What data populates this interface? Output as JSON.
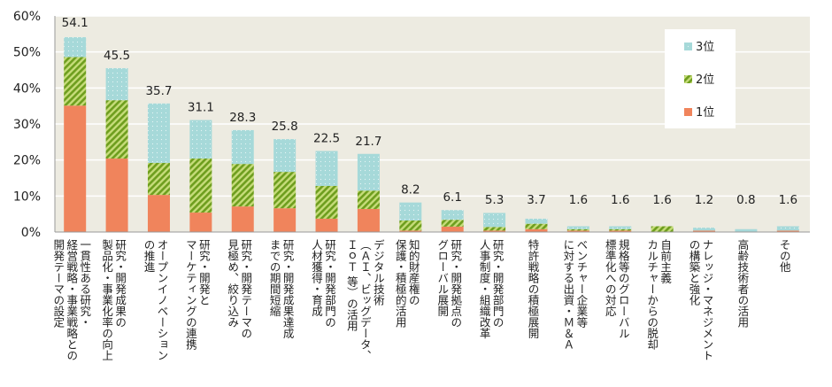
{
  "chart_data": {
    "type": "bar",
    "stacked": true,
    "ylim": [
      0,
      60
    ],
    "yticks": [
      "0%",
      "10%",
      "20%",
      "30%",
      "40%",
      "50%",
      "60%"
    ],
    "grid": true,
    "legend_position": "top-right",
    "legend": [
      "3位",
      "2位",
      "1位"
    ],
    "colors": {
      "rank1": "#f0845c",
      "rank2": "#7ea82a",
      "rank3": "#a6d9d9",
      "plot_bg": "#edebe1"
    },
    "categories": [
      [
        "一貫性ある研究・",
        "経営戦略・事業戦略との",
        "開発テーマの設定"
      ],
      [
        "研究・開発成果の",
        "製品化・事業化率の向上"
      ],
      [
        "オープンイノベーション",
        "の推進"
      ],
      [
        "研究・開発と",
        "マーケティングの連携"
      ],
      [
        "研究・開発テーマの",
        "見極め、絞り込み"
      ],
      [
        "研究・開発成果達成",
        "までの期間短縮"
      ],
      [
        "研究・開発部門の",
        "人材獲得・育成"
      ],
      [
        "デジタル技術",
        "（ＡＩ、ビッグデータ、",
        "ＩｏＴ 等）の活用"
      ],
      [
        "知的財産権の",
        "保護・積極的活用"
      ],
      [
        "研究・開発拠点の",
        "グローバル展開"
      ],
      [
        "研究・開発部門の",
        "人事制度・組織改革"
      ],
      [
        "特許戦略の積極展開"
      ],
      [
        "ベンチャー企業等",
        "に対する出資・Ｍ＆Ａ"
      ],
      [
        "規格等のグローバル",
        "標準化への対応"
      ],
      [
        "自前主義",
        "カルチャーからの脱却"
      ],
      [
        "ナレッジ・マネジメント",
        "の構築と強化"
      ],
      [
        "高齢技術者の活用"
      ],
      [
        "その他"
      ]
    ],
    "totals": [
      "54.1",
      "45.5",
      "35.7",
      "31.1",
      "28.3",
      "25.8",
      "22.5",
      "21.7",
      "8.2",
      "6.1",
      "5.3",
      "3.7",
      "1.6",
      "1.6",
      "1.6",
      "1.2",
      "0.8",
      "1.6"
    ],
    "series": [
      {
        "name": "1位",
        "values": [
          35.1,
          20.4,
          10.3,
          5.4,
          7.1,
          6.6,
          3.7,
          6.4,
          0.4,
          1.5,
          0.4,
          0.8,
          0.4,
          0.4,
          0,
          0.4,
          0,
          0.4
        ]
      },
      {
        "name": "2位",
        "values": [
          13.5,
          16.2,
          8.9,
          15.0,
          11.8,
          10.1,
          9.1,
          5.1,
          2.8,
          1.9,
          1.0,
          1.5,
          0.4,
          0.4,
          1.6,
          0,
          0,
          0
        ]
      },
      {
        "name": "3位",
        "values": [
          5.5,
          8.9,
          16.5,
          10.7,
          9.4,
          9.1,
          9.7,
          10.2,
          5.0,
          2.7,
          3.9,
          1.4,
          0.8,
          0.8,
          0,
          0.8,
          0.8,
          1.2
        ]
      }
    ]
  }
}
